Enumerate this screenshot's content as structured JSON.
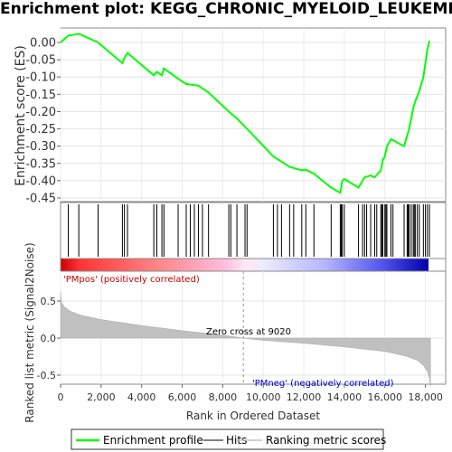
{
  "chart_data": {
    "title": "Enrichment plot: KEGG_CHRONIC_MYELOID_LEUKEMIA",
    "top_panel": {
      "type": "line",
      "ylabel": "Enrichment score (ES)",
      "ylim": [
        -0.45,
        0.02
      ],
      "yticks": [
        "0.00",
        "-0.05",
        "-0.10",
        "-0.15",
        "-0.20",
        "-0.25",
        "-0.30",
        "-0.35",
        "-0.40",
        "-0.45"
      ],
      "yticks_values": [
        0.0,
        -0.05,
        -0.1,
        -0.15,
        -0.2,
        -0.25,
        -0.3,
        -0.35,
        -0.4,
        -0.45
      ],
      "grid": true,
      "series": [
        {
          "name": "Enrichment profile",
          "color": "#00ff00",
          "x": [
            0,
            380,
            900,
            1850,
            3050,
            3150,
            3300,
            4600,
            4750,
            5000,
            5100,
            5800,
            6200,
            6800,
            7300,
            8300,
            8700,
            9200,
            10500,
            11300,
            11900,
            12100,
            12500,
            13350,
            13800,
            13900,
            14000,
            14700,
            14900,
            15000,
            15300,
            15500,
            15800,
            15900,
            16000,
            16100,
            16300,
            16950,
            17100,
            17200,
            17300,
            17400,
            17500,
            17700,
            17900,
            18000,
            18100,
            18200
          ],
          "y": [
            0.0,
            0.02,
            0.025,
            0.0,
            -0.06,
            -0.045,
            -0.03,
            -0.095,
            -0.085,
            -0.095,
            -0.075,
            -0.105,
            -0.12,
            -0.125,
            -0.145,
            -0.2,
            -0.22,
            -0.25,
            -0.33,
            -0.36,
            -0.37,
            -0.368,
            -0.38,
            -0.42,
            -0.435,
            -0.4,
            -0.395,
            -0.42,
            -0.4,
            -0.39,
            -0.385,
            -0.39,
            -0.37,
            -0.34,
            -0.33,
            -0.3,
            -0.28,
            -0.3,
            -0.27,
            -0.25,
            -0.22,
            -0.19,
            -0.17,
            -0.14,
            -0.1,
            -0.06,
            -0.02,
            0.005
          ]
        }
      ]
    },
    "hits_panel": {
      "legend_name": "Hits",
      "hits": [
        380,
        900,
        1850,
        3050,
        3150,
        3300,
        4600,
        4750,
        5000,
        5100,
        5800,
        6200,
        6400,
        6600,
        6800,
        7000,
        7300,
        8300,
        8400,
        8700,
        9100,
        9200,
        10500,
        10700,
        10900,
        11300,
        11500,
        11900,
        12100,
        12500,
        13350,
        13800,
        13850,
        13900,
        14000,
        14700,
        14900,
        15000,
        15100,
        15300,
        15500,
        15600,
        15800,
        15850,
        15900,
        16000,
        16050,
        16100,
        16300,
        16400,
        16950,
        17100,
        17150,
        17200,
        17300,
        17400,
        17450,
        17500,
        17600,
        17700,
        17900,
        18000,
        18100,
        18200
      ]
    },
    "bottom_panel": {
      "type": "area",
      "legend_name": "Ranking metric scores",
      "ylabel": "Ranked list metric (Signal2Noise)",
      "xlabel": "Rank in Ordered Dataset",
      "ylim": [
        -0.7,
        0.7
      ],
      "yticks": [
        "0.5",
        "0.0",
        "-0.5"
      ],
      "yticks_values": [
        0.5,
        0.0,
        -0.5
      ],
      "xlim": [
        0,
        19000
      ],
      "xticks": [
        "0",
        "2,000",
        "4,000",
        "6,000",
        "8,000",
        "10,000",
        "12,000",
        "14,000",
        "16,000",
        "18,000"
      ],
      "xticks_values": [
        0,
        2000,
        4000,
        6000,
        8000,
        10000,
        12000,
        14000,
        16000,
        18000
      ],
      "x": [
        0,
        50,
        200,
        500,
        1000,
        2000,
        4000,
        6000,
        8000,
        9020,
        10000,
        12000,
        14000,
        16000,
        17000,
        17600,
        17900,
        18100,
        18200,
        18250
      ],
      "y": [
        0.62,
        0.48,
        0.42,
        0.36,
        0.31,
        0.25,
        0.17,
        0.1,
        0.04,
        0.0,
        -0.03,
        -0.07,
        -0.12,
        -0.18,
        -0.24,
        -0.3,
        -0.37,
        -0.45,
        -0.55,
        -0.65
      ],
      "annotations": {
        "zero_cross": "Zero cross at 9020",
        "zero_cross_x": 9020,
        "pos_label": "'PMpos' (positively correlated)",
        "neg_label": "'PMneg' (negatively correlated)",
        "pos_color": "#cc0000",
        "neg_color": "#0000cc"
      }
    },
    "legend": {
      "placement": "bottom",
      "items": [
        {
          "label": "Enrichment profile",
          "color": "#00ff00"
        },
        {
          "label": "Hits",
          "color": "#000000"
        },
        {
          "label": "Ranking metric scores",
          "color": "#c0c0c0"
        }
      ]
    }
  }
}
